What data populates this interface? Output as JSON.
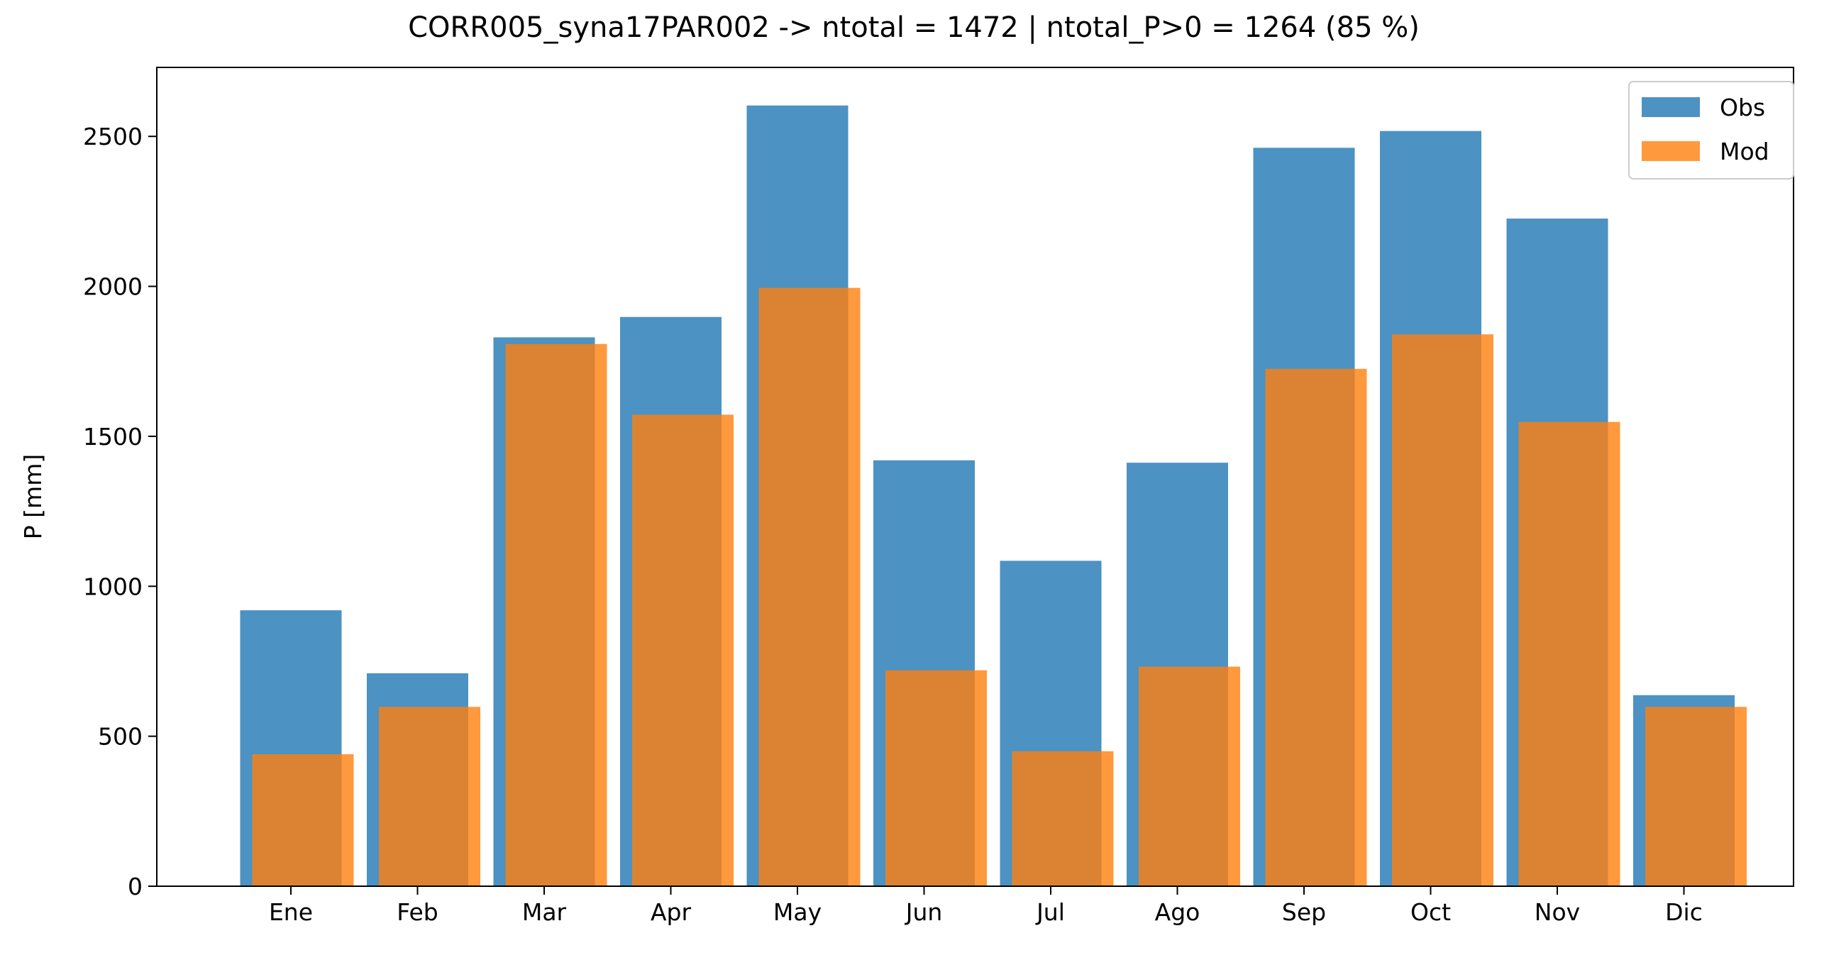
{
  "chart_data": {
    "type": "bar",
    "title": "CORR005_syna17PAR002 -> ntotal = 1472 | ntotal_P>0 = 1264 (85 %)",
    "xlabel": "",
    "ylabel": "P [mm]",
    "categories": [
      "Ene",
      "Feb",
      "Mar",
      "Apr",
      "May",
      "Jun",
      "Jul",
      "Ago",
      "Sep",
      "Oct",
      "Nov",
      "Dic"
    ],
    "series": [
      {
        "name": "Obs",
        "color": "#1f77b4",
        "values": [
          920,
          710,
          1830,
          1898,
          2603,
          1420,
          1085,
          1412,
          2462,
          2518,
          2226,
          637
        ]
      },
      {
        "name": "Mod",
        "color": "#ff7f0e",
        "values": [
          440,
          598,
          1808,
          1572,
          1995,
          720,
          450,
          732,
          1725,
          1840,
          1548,
          598
        ]
      }
    ],
    "ylim": [
      0,
      2730
    ],
    "yticks": [
      0,
      500,
      1000,
      1500,
      2000,
      2500
    ],
    "ytick_labels": [
      "0",
      "500",
      "1000",
      "1500",
      "2000",
      "2500"
    ],
    "grid": false,
    "legend_position": "top-right"
  }
}
